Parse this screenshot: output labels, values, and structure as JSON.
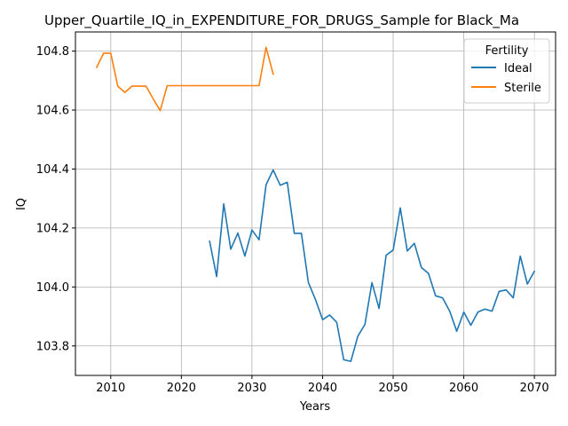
{
  "chart_data": {
    "type": "line",
    "title": "Upper_Quartile_IQ_in_EXPENDITURE_FOR_DRUGS_Sample for Black_Ma",
    "xlabel": "Years",
    "ylabel": "IQ",
    "xlim": [
      2005,
      2073
    ],
    "ylim": [
      103.7,
      104.865
    ],
    "xticks": [
      2010,
      2020,
      2030,
      2040,
      2050,
      2060,
      2070
    ],
    "yticks": [
      103.8,
      104.0,
      104.2,
      104.4,
      104.6,
      104.8
    ],
    "grid": true,
    "legend": {
      "title": "Fertility",
      "placement": "top-right"
    },
    "series": [
      {
        "name": "Ideal",
        "color": "#1f77b4",
        "x": [
          2024,
          2025,
          2026,
          2027,
          2028,
          2029,
          2030,
          2031,
          2032,
          2033,
          2034,
          2035,
          2036,
          2037,
          2038,
          2039,
          2040,
          2041,
          2042,
          2043,
          2044,
          2045,
          2046,
          2047,
          2048,
          2049,
          2050,
          2051,
          2052,
          2053,
          2054,
          2055,
          2056,
          2057,
          2058,
          2059,
          2060,
          2061,
          2062,
          2063,
          2064,
          2065,
          2066,
          2067,
          2068,
          2069,
          2070
        ],
        "y": [
          104.155,
          104.035,
          104.282,
          104.128,
          104.183,
          104.105,
          104.193,
          104.16,
          104.347,
          104.397,
          104.345,
          104.355,
          104.182,
          104.182,
          104.015,
          103.957,
          103.889,
          103.905,
          103.88,
          103.753,
          103.748,
          103.833,
          103.873,
          104.015,
          103.927,
          104.108,
          104.125,
          104.268,
          104.122,
          104.148,
          104.066,
          104.046,
          103.97,
          103.963,
          103.918,
          103.85,
          103.915,
          103.87,
          103.915,
          103.925,
          103.918,
          103.985,
          103.99,
          103.963,
          104.105,
          104.01,
          104.053
        ]
      },
      {
        "name": "Sterile",
        "color": "#ff7f0e",
        "x": [
          2008,
          2009,
          2010,
          2011,
          2012,
          2013,
          2014,
          2015,
          2016,
          2017,
          2018,
          2019,
          2020,
          2021,
          2022,
          2023,
          2024,
          2025,
          2026,
          2027,
          2028,
          2029,
          2030,
          2031,
          2032,
          2033
        ],
        "y": [
          104.745,
          104.793,
          104.793,
          104.681,
          104.66,
          104.681,
          104.681,
          104.681,
          104.639,
          104.598,
          104.683,
          104.683,
          104.683,
          104.683,
          104.683,
          104.683,
          104.683,
          104.683,
          104.683,
          104.683,
          104.683,
          104.683,
          104.683,
          104.683,
          104.813,
          104.722
        ]
      }
    ]
  }
}
